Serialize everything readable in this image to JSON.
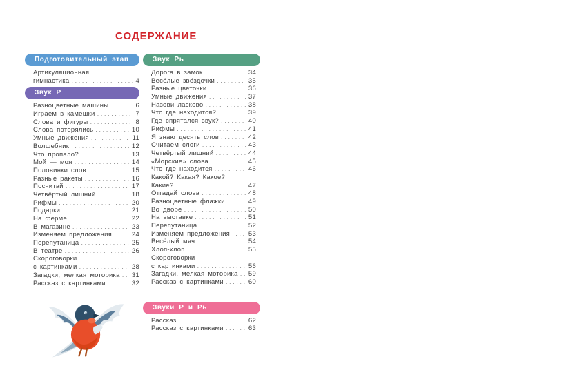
{
  "title": "СОДЕРЖАНИЕ",
  "colors": {
    "title_red": "#d2232a",
    "prep_blue": "#5b9bd3",
    "sound_r_purple": "#7668b5",
    "sound_r_soft_green": "#55a083",
    "sounds_both_pink": "#ef6e96",
    "entry_text": "#3f3f3f"
  },
  "illustration": {
    "name": "bullfinch-bird",
    "body_color": "#e84e2a",
    "head_color": "#2f4f69",
    "wing_color": "#5d7f9c"
  },
  "sections": [
    {
      "id": "prep-stage",
      "header": "Подготовительный этап",
      "color": "#5b9bd3",
      "column": "left",
      "entries": [
        {
          "lines": [
            "Артикуляционная",
            "гимнастика"
          ],
          "page": "4"
        }
      ]
    },
    {
      "id": "sound-r",
      "header": "Звук Р",
      "color": "#7668b5",
      "column": "left",
      "entries": [
        {
          "lines": [
            "Разноцветные машины"
          ],
          "page": "6"
        },
        {
          "lines": [
            "Играем в камешки"
          ],
          "page": "7"
        },
        {
          "lines": [
            "Слова и фигуры"
          ],
          "page": "8"
        },
        {
          "lines": [
            "Слова потерялись"
          ],
          "page": "10"
        },
        {
          "lines": [
            "Умные движения"
          ],
          "page": "11"
        },
        {
          "lines": [
            "Волшебник"
          ],
          "page": "12"
        },
        {
          "lines": [
            "Что пропало?"
          ],
          "page": "13"
        },
        {
          "lines": [
            "Мой — моя"
          ],
          "page": "14"
        },
        {
          "lines": [
            "Половинки слов"
          ],
          "page": "15"
        },
        {
          "lines": [
            "Разные ракеты"
          ],
          "page": "16"
        },
        {
          "lines": [
            "Посчитай"
          ],
          "page": "17"
        },
        {
          "lines": [
            "Четвёртый лишний"
          ],
          "page": "18"
        },
        {
          "lines": [
            "Рифмы"
          ],
          "page": "20"
        },
        {
          "lines": [
            "Подарки"
          ],
          "page": "21"
        },
        {
          "lines": [
            "На ферме"
          ],
          "page": "22"
        },
        {
          "lines": [
            "В магазине"
          ],
          "page": "23"
        },
        {
          "lines": [
            "Изменяем предложения"
          ],
          "page": "24"
        },
        {
          "lines": [
            "Перепутаница"
          ],
          "page": "25"
        },
        {
          "lines": [
            "В театре"
          ],
          "page": "26"
        },
        {
          "lines": [
            "Скороговорки",
            "с картинками"
          ],
          "page": "28"
        },
        {
          "lines": [
            "Загадки, мелкая моторика"
          ],
          "page": "31"
        },
        {
          "lines": [
            "Рассказ с картинками"
          ],
          "page": "32"
        }
      ]
    },
    {
      "id": "sound-r-soft",
      "header": "Звук Рь",
      "color": "#55a083",
      "column": "right",
      "entries": [
        {
          "lines": [
            "Дорога в замок"
          ],
          "page": "34"
        },
        {
          "lines": [
            "Весёлые звёздочки"
          ],
          "page": "35"
        },
        {
          "lines": [
            "Разные цветочки"
          ],
          "page": "36"
        },
        {
          "lines": [
            "Умные движения"
          ],
          "page": "37"
        },
        {
          "lines": [
            "Назови ласково"
          ],
          "page": "38"
        },
        {
          "lines": [
            "Что где находится?"
          ],
          "page": "39"
        },
        {
          "lines": [
            "Где спрятался звук?"
          ],
          "page": "40"
        },
        {
          "lines": [
            "Рифмы"
          ],
          "page": "41"
        },
        {
          "lines": [
            "Я знаю десять слов"
          ],
          "page": "42"
        },
        {
          "lines": [
            "Считаем слоги"
          ],
          "page": "43"
        },
        {
          "lines": [
            "Четвёртый лишний"
          ],
          "page": "44"
        },
        {
          "lines": [
            "«Морские» слова"
          ],
          "page": "45"
        },
        {
          "lines": [
            "Что где находится"
          ],
          "page": "46"
        },
        {
          "lines": [
            "Какой? Какая? Какое?",
            "Какие?"
          ],
          "page": "47"
        },
        {
          "lines": [
            "Отгадай слова"
          ],
          "page": "48"
        },
        {
          "lines": [
            "Разноцветные флажки"
          ],
          "page": "49"
        },
        {
          "lines": [
            "Во дворе"
          ],
          "page": "50"
        },
        {
          "lines": [
            "На выставке"
          ],
          "page": "51"
        },
        {
          "lines": [
            "Перепутаница"
          ],
          "page": "52"
        },
        {
          "lines": [
            "Изменяем предложения"
          ],
          "page": "53"
        },
        {
          "lines": [
            "Весёлый мяч"
          ],
          "page": "54"
        },
        {
          "lines": [
            "Хлоп-хлоп"
          ],
          "page": "55"
        },
        {
          "lines": [
            "Скороговорки",
            "с картинками"
          ],
          "page": "56"
        },
        {
          "lines": [
            "Загадки, мелкая моторика"
          ],
          "page": "59"
        },
        {
          "lines": [
            "Рассказ с картинками"
          ],
          "page": "60"
        }
      ]
    },
    {
      "id": "sounds-r-and-r-soft",
      "header": "Звуки Р и Рь",
      "color": "#ef6e96",
      "column": "right",
      "entries": [
        {
          "lines": [
            "Рассказ"
          ],
          "page": "62"
        },
        {
          "lines": [
            "Рассказ с картинками"
          ],
          "page": "63"
        }
      ]
    }
  ]
}
